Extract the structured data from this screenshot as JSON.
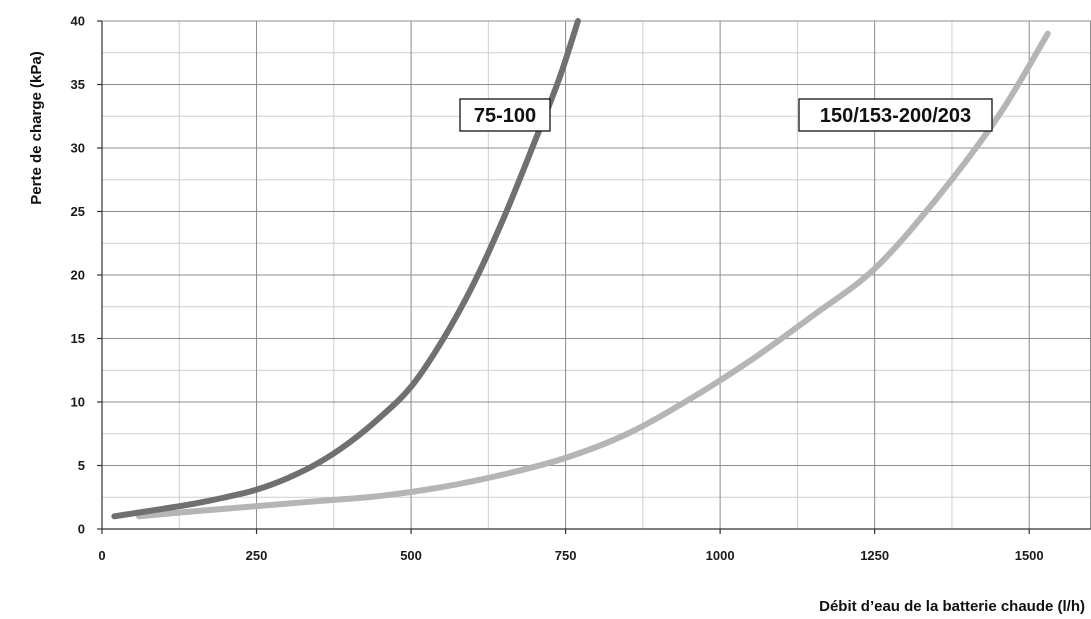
{
  "chart_data": {
    "type": "line",
    "title": "",
    "xlabel": "Débit d’eau de la batterie chaude (l/h)",
    "ylabel": "Perte de charge (kPa)",
    "xlim": [
      0,
      1600
    ],
    "ylim": [
      0,
      40
    ],
    "xticks": [
      0,
      250,
      500,
      750,
      1000,
      1250,
      1500
    ],
    "yticks": [
      0,
      5,
      10,
      15,
      20,
      25,
      30,
      35,
      40
    ],
    "x_minor_step": 125,
    "y_minor_step": 2.5,
    "grid": true,
    "legend": "inline labels",
    "series": [
      {
        "name": "75-100",
        "color": "#707070",
        "x": [
          20,
          100,
          150,
          200,
          250,
          300,
          350,
          400,
          450,
          500,
          550,
          600,
          650,
          700,
          740,
          770
        ],
        "y": [
          1.0,
          1.6,
          2.0,
          2.5,
          3.1,
          4.0,
          5.2,
          6.8,
          8.8,
          11.2,
          14.8,
          19.2,
          24.5,
          30.5,
          35.5,
          40.0
        ]
      },
      {
        "name": "150/153-200/203",
        "color": "#b5b5b5",
        "x": [
          60,
          150,
          250,
          350,
          450,
          550,
          650,
          750,
          850,
          950,
          1050,
          1150,
          1250,
          1350,
          1450,
          1530
        ],
        "y": [
          1.0,
          1.4,
          1.8,
          2.2,
          2.6,
          3.3,
          4.3,
          5.6,
          7.5,
          10.2,
          13.3,
          16.8,
          20.5,
          26.0,
          32.5,
          39.0
        ]
      }
    ]
  }
}
